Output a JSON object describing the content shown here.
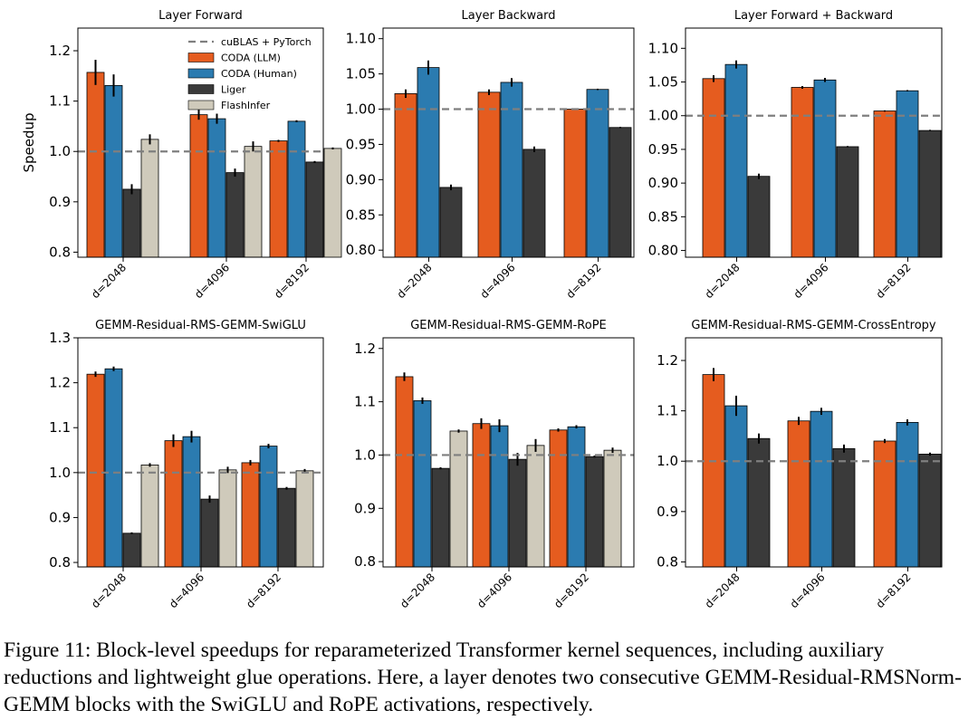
{
  "caption": "Figure 11: Block-level speedups for reparameterized Transformer kernel sequences, including auxiliary reductions and lightweight glue operations. Here, a layer denotes two consecutive GEMM-Residual-RMSNorm-GEMM blocks with the SwiGLU and RoPE activations, respectively.",
  "colors": {
    "baseline": "#7f7f7f",
    "CODA (LLM)": "#e55c1f",
    "CODA (Human)": "#2b7bb0",
    "Liger": "#3a3a3a",
    "FlashInfer": "#cfcabb"
  },
  "chart_data": [
    {
      "type": "bar",
      "title": "Layer Forward",
      "ylabel": "Speedup",
      "ylim": [
        0.79,
        1.245
      ],
      "yticks": [
        0.8,
        0.9,
        1.0,
        1.1,
        1.2
      ],
      "ytick_labels": [
        "0.8",
        "0.9",
        "1.0",
        "1.1",
        "1.2"
      ],
      "baseline": 1.0,
      "legend": {
        "placement": "top-right",
        "entries": [
          "cuBLAS + PyTorch",
          "CODA (LLM)",
          "CODA (Human)",
          "Liger",
          "FlashInfer"
        ]
      },
      "categories": [
        "d=2048",
        "d=4096",
        "d=8192"
      ],
      "series": [
        {
          "name": "CODA (LLM)",
          "values": [
            1.157,
            1.073,
            1.021
          ],
          "errors": [
            0.025,
            0.01,
            0.002
          ]
        },
        {
          "name": "CODA (Human)",
          "values": [
            1.131,
            1.065,
            1.06
          ],
          "errors": [
            0.022,
            0.01,
            0.002
          ]
        },
        {
          "name": "Liger",
          "values": [
            0.925,
            0.958,
            0.979
          ],
          "errors": [
            0.01,
            0.008,
            0.002
          ]
        },
        {
          "name": "FlashInfer",
          "values": [
            1.024,
            1.01,
            1.006
          ],
          "errors": [
            0.01,
            0.01,
            0.002
          ]
        }
      ]
    },
    {
      "type": "bar",
      "title": "Layer Backward",
      "ylim": [
        0.79,
        1.115
      ],
      "yticks": [
        0.8,
        0.85,
        0.9,
        0.95,
        1.0,
        1.05,
        1.1
      ],
      "ytick_labels": [
        "0.80",
        "0.85",
        "0.90",
        "0.95",
        "1.00",
        "1.05",
        "1.10"
      ],
      "baseline": 1.0,
      "categories": [
        "d=2048",
        "d=4096",
        "d=8192"
      ],
      "series": [
        {
          "name": "CODA (LLM)",
          "values": [
            1.022,
            1.024,
            1.0
          ],
          "errors": [
            0.006,
            0.004,
            0.001
          ]
        },
        {
          "name": "CODA (Human)",
          "values": [
            1.059,
            1.038,
            1.028
          ],
          "errors": [
            0.01,
            0.006,
            0.001
          ]
        },
        {
          "name": "Liger",
          "values": [
            0.889,
            0.943,
            0.974
          ],
          "errors": [
            0.004,
            0.004,
            0.001
          ]
        }
      ]
    },
    {
      "type": "bar",
      "title": "Layer Forward + Backward",
      "ylim": [
        0.79,
        1.13
      ],
      "yticks": [
        0.8,
        0.85,
        0.9,
        0.95,
        1.0,
        1.05,
        1.1
      ],
      "ytick_labels": [
        "0.80",
        "0.85",
        "0.90",
        "0.95",
        "1.00",
        "1.05",
        "1.10"
      ],
      "baseline": 1.0,
      "categories": [
        "d=2048",
        "d=4096",
        "d=8192"
      ],
      "series": [
        {
          "name": "CODA (LLM)",
          "values": [
            1.055,
            1.042,
            1.007
          ],
          "errors": [
            0.005,
            0.002,
            0.001
          ]
        },
        {
          "name": "CODA (Human)",
          "values": [
            1.076,
            1.053,
            1.037
          ],
          "errors": [
            0.006,
            0.003,
            0.001
          ]
        },
        {
          "name": "Liger",
          "values": [
            0.91,
            0.954,
            0.978
          ],
          "errors": [
            0.004,
            0.001,
            0.001
          ]
        }
      ]
    },
    {
      "type": "bar",
      "title": "GEMM-Residual-RMS-GEMM-SwiGLU",
      "ylim": [
        0.79,
        1.3
      ],
      "yticks": [
        0.8,
        0.9,
        1.0,
        1.1,
        1.2,
        1.3
      ],
      "ytick_labels": [
        "0.8",
        "0.9",
        "1.0",
        "1.1",
        "1.2",
        "1.3"
      ],
      "baseline": 1.0,
      "categories": [
        "d=2048",
        "d=4096",
        "d=8192"
      ],
      "series": [
        {
          "name": "CODA (LLM)",
          "values": [
            1.219,
            1.071,
            1.022
          ],
          "errors": [
            0.006,
            0.014,
            0.006
          ]
        },
        {
          "name": "CODA (Human)",
          "values": [
            1.231,
            1.08,
            1.059
          ],
          "errors": [
            0.005,
            0.013,
            0.005
          ]
        },
        {
          "name": "Liger",
          "values": [
            0.865,
            0.941,
            0.965
          ],
          "errors": [
            0.002,
            0.008,
            0.003
          ]
        },
        {
          "name": "FlashInfer",
          "values": [
            1.017,
            1.006,
            1.004
          ],
          "errors": [
            0.004,
            0.007,
            0.004
          ]
        }
      ]
    },
    {
      "type": "bar",
      "title": "GEMM-Residual-RMS-GEMM-RoPE",
      "ylim": [
        0.79,
        1.22
      ],
      "yticks": [
        0.8,
        0.9,
        1.0,
        1.1,
        1.2
      ],
      "ytick_labels": [
        "0.8",
        "0.9",
        "1.0",
        "1.1",
        "1.2"
      ],
      "baseline": 1.0,
      "categories": [
        "d=2048",
        "d=4096",
        "d=8192"
      ],
      "series": [
        {
          "name": "CODA (LLM)",
          "values": [
            1.147,
            1.059,
            1.047
          ],
          "errors": [
            0.008,
            0.01,
            0.003
          ]
        },
        {
          "name": "CODA (Human)",
          "values": [
            1.102,
            1.055,
            1.053
          ],
          "errors": [
            0.006,
            0.012,
            0.003
          ]
        },
        {
          "name": "Liger",
          "values": [
            0.975,
            0.992,
            0.997
          ],
          "errors": [
            0.002,
            0.012,
            0.002
          ]
        },
        {
          "name": "FlashInfer",
          "values": [
            1.045,
            1.018,
            1.009
          ],
          "errors": [
            0.003,
            0.012,
            0.005
          ]
        }
      ]
    },
    {
      "type": "bar",
      "title": "GEMM-Residual-RMS-GEMM-CrossEntropy",
      "ylim": [
        0.79,
        1.245
      ],
      "yticks": [
        0.8,
        0.9,
        1.0,
        1.1,
        1.2
      ],
      "ytick_labels": [
        "0.8",
        "0.9",
        "1.0",
        "1.1",
        "1.2"
      ],
      "baseline": 1.0,
      "categories": [
        "d=2048",
        "d=4096",
        "d=8192"
      ],
      "series": [
        {
          "name": "CODA (LLM)",
          "values": [
            1.172,
            1.08,
            1.04
          ],
          "errors": [
            0.013,
            0.008,
            0.004
          ]
        },
        {
          "name": "CODA (Human)",
          "values": [
            1.11,
            1.099,
            1.077
          ],
          "errors": [
            0.02,
            0.007,
            0.006
          ]
        },
        {
          "name": "Liger",
          "values": [
            1.045,
            1.025,
            1.014
          ],
          "errors": [
            0.01,
            0.008,
            0.003
          ]
        }
      ]
    }
  ]
}
